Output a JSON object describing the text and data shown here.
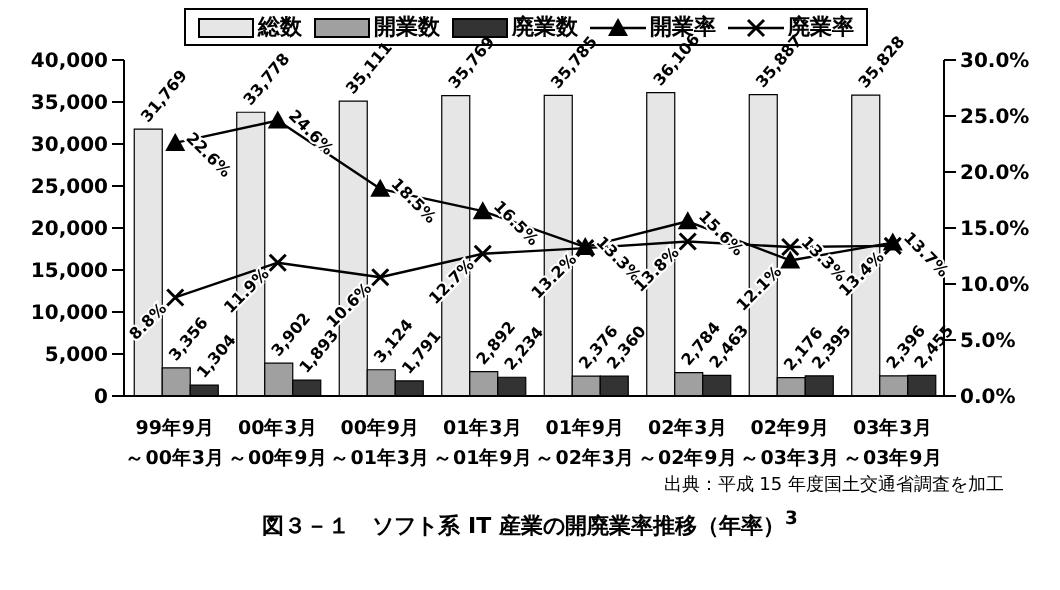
{
  "chart_data": {
    "type": "bar",
    "title": "図３－１　ソフト系 IT 産業の開廃業率推移（年率）$^{3}$",
    "annotations": [
      "出典：平成 15 年度国土交通省調査を加工"
    ],
    "categories": [
      "99年9月～00年3月",
      "00年3月～00年9月",
      "00年9月～01年3月",
      "01年3月～01年9月",
      "01年9月～02年3月",
      "02年3月～02年9月",
      "02年9月～03年3月",
      "03年3月～03年9月"
    ],
    "series": [
      {
        "name": "総数",
        "color": "#e6e6e6",
        "values": [
          31769,
          33778,
          35111,
          35769,
          35785,
          36106,
          35887,
          35828
        ],
        "value_labels": [
          "31,769",
          "33,778",
          "35,111",
          "35,769",
          "35,785",
          "36,106",
          "35,887",
          "35,828"
        ]
      },
      {
        "name": "開業数",
        "color": "#a0a0a0",
        "values": [
          3356,
          3902,
          3124,
          2892,
          2376,
          2784,
          2176,
          2396
        ],
        "value_labels": [
          "3,356",
          "3,902",
          "3,124",
          "2,892",
          "2,376",
          "2,784",
          "2,176",
          "2,396"
        ]
      },
      {
        "name": "廃業数",
        "color": "#333333",
        "values": [
          1304,
          1893,
          1791,
          2234,
          2360,
          2463,
          2395,
          2455
        ],
        "value_labels": [
          "1,304",
          "1,893",
          "1,791",
          "2,234",
          "2,360",
          "2,463",
          "2,395",
          "2,455"
        ]
      },
      {
        "name": "開業率",
        "type": "line",
        "axis": "y2",
        "color": "#000000",
        "marker": "triangle",
        "values": [
          22.6,
          24.6,
          18.5,
          16.5,
          13.3,
          15.6,
          12.1,
          13.7
        ],
        "value_labels": [
          "22.6%",
          "24.6%",
          "18.5%",
          "16.5%",
          "13.3%",
          "15.6%",
          "12.1%",
          "13.7%"
        ]
      },
      {
        "name": "廃業率",
        "type": "line",
        "axis": "y2",
        "color": "#000000",
        "marker": "cross",
        "values": [
          8.8,
          11.9,
          10.6,
          12.7,
          13.2,
          13.8,
          13.3,
          13.4
        ],
        "value_labels": [
          "8.8%",
          "11.9%",
          "10.6%",
          "12.7%",
          "13.2%",
          "13.8%",
          "13.3%",
          "13.4%"
        ]
      }
    ],
    "ylim": [
      0,
      40000
    ],
    "yticks": [
      {
        "value": 0,
        "label": "0"
      },
      {
        "value": 5000,
        "label": "5,000"
      },
      {
        "value": 10000,
        "label": "10,000"
      },
      {
        "value": 15000,
        "label": "15,000"
      },
      {
        "value": 20000,
        "label": "20,000"
      },
      {
        "value": 25000,
        "label": "25,000"
      },
      {
        "value": 30000,
        "label": "30,000"
      },
      {
        "value": 35000,
        "label": "35,000"
      },
      {
        "value": 40000,
        "label": "40,000"
      }
    ],
    "y2lim": [
      0,
      30
    ],
    "y2ticks": [
      {
        "value": 0,
        "label": "0.0%"
      },
      {
        "value": 5,
        "label": "5.0%"
      },
      {
        "value": 10,
        "label": "10.0%"
      },
      {
        "value": 15,
        "label": "15.0%"
      },
      {
        "value": 20,
        "label": "20.0%"
      },
      {
        "value": 25,
        "label": "25.0%"
      },
      {
        "value": 30,
        "label": "30.0%"
      }
    ],
    "grid": false,
    "legend": "top"
  }
}
